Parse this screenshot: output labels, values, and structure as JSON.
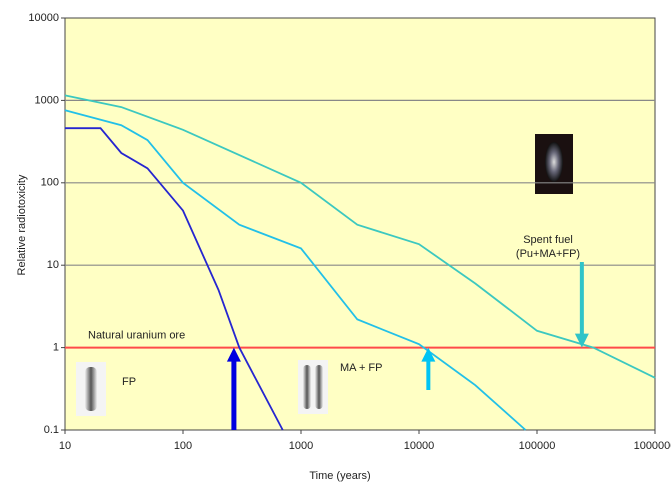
{
  "chart_data": {
    "type": "line",
    "xlabel": "Time (years)",
    "ylabel": "Relative radiotoxicity",
    "xscale": "log",
    "yscale": "log",
    "xlim": [
      10,
      1000000
    ],
    "ylim": [
      0.1,
      10000
    ],
    "xticks": [
      10,
      100,
      1000,
      10000,
      100000,
      1000000
    ],
    "yticks": [
      0.1,
      1,
      10,
      100,
      1000,
      10000
    ],
    "grid": true,
    "background": "#ffffc4",
    "series": [
      {
        "name": "Spent fuel",
        "color": "#3cc8c0",
        "x": [
          10,
          30,
          100,
          1000,
          3000,
          10000,
          30000,
          100000,
          300000,
          1000000
        ],
        "values": [
          1150,
          830,
          440,
          100,
          31,
          18,
          6,
          1.6,
          1,
          0.43
        ]
      },
      {
        "name": "MA + FP",
        "color": "#22c0e8",
        "x": [
          10,
          30,
          50,
          100,
          300,
          1000,
          3000,
          10000,
          30000,
          80000
        ],
        "values": [
          760,
          500,
          330,
          100,
          31,
          16,
          2.2,
          1.1,
          0.35,
          0.1
        ]
      },
      {
        "name": "FP",
        "color": "#2626d0",
        "x": [
          10,
          20,
          30,
          50,
          100,
          200,
          300,
          700
        ],
        "values": [
          460,
          460,
          230,
          150,
          46,
          5,
          1,
          0.1
        ]
      }
    ],
    "series_note": "(Pu+MA+FP)",
    "reference_line": {
      "value": 1,
      "label": "Natural uranium ore",
      "color": "#ff4a4a"
    },
    "arrows": [
      {
        "x": 270,
        "color": "#0000e0",
        "direction": "up"
      },
      {
        "x": 12000,
        "color": "#00c4f4",
        "direction": "up"
      },
      {
        "x": 240000,
        "color": "#30c4c8",
        "direction": "down"
      }
    ]
  }
}
